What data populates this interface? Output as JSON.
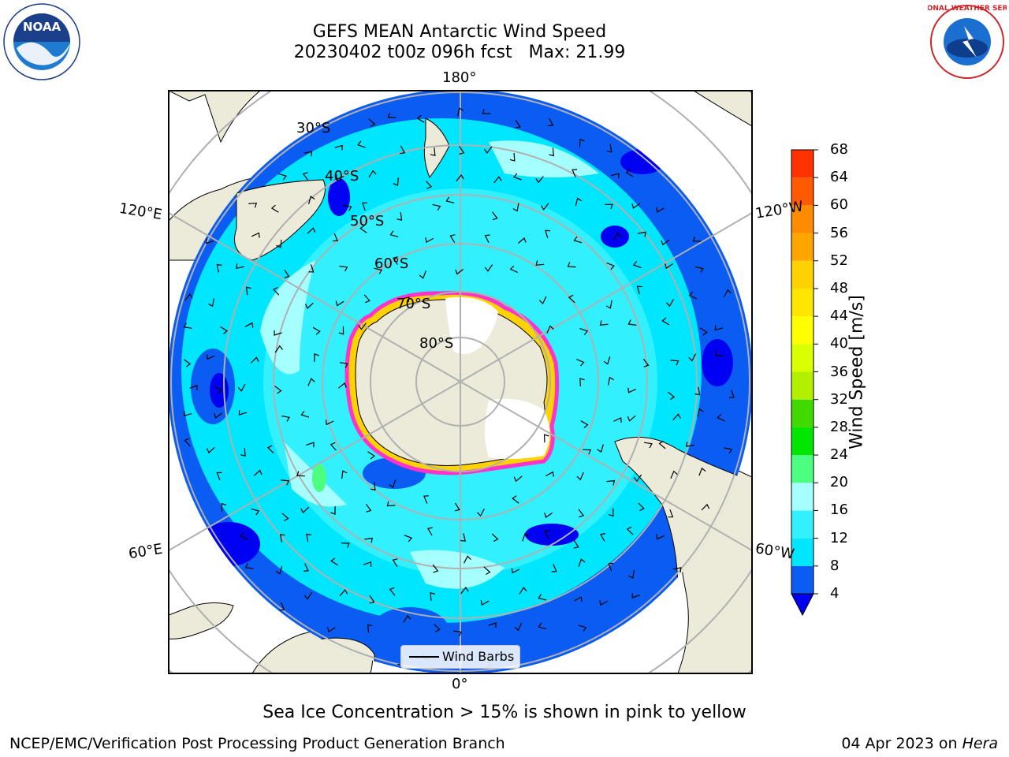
{
  "title_line1": "GEFS MEAN Antarctic Wind Speed",
  "title_line2": "20230402 t00z 096h fcst   Max: 21.99",
  "map": {
    "projection": "south-polar-stereographic",
    "longitude_labels": [
      "180°",
      "120°E",
      "120°W",
      "60°E",
      "60°W",
      "0°"
    ],
    "latitude_labels": [
      "30°S",
      "40°S",
      "50°S",
      "60°S",
      "70°S",
      "80°S"
    ]
  },
  "colorbar": {
    "label": "Wind Speed [m/s]",
    "ticks": [
      "4",
      "8",
      "12",
      "16",
      "20",
      "24",
      "28",
      "32",
      "36",
      "40",
      "44",
      "48",
      "52",
      "56",
      "60",
      "64",
      "68"
    ],
    "colors": [
      "#0a5cf2",
      "#00e6ff",
      "#33f0ff",
      "#a6ffff",
      "#4dff80",
      "#00e600",
      "#40d900",
      "#b3f000",
      "#d9ff00",
      "#ffff00",
      "#ffe600",
      "#ffd200",
      "#ffa500",
      "#ff8c00",
      "#ff5a00",
      "#ff3200"
    ],
    "underflow_color": "#0000f2"
  },
  "legend": {
    "label": "Wind Barbs"
  },
  "footnote": "Sea Ice Concentration > 15% is shown in pink to yellow",
  "credit": "NCEP/EMC/Verification Post Processing Product Generation Branch",
  "date_text": "04 Apr 2023 on ",
  "date_host": "Hera",
  "logos": {
    "noaa": "NOAA",
    "nws": "NATIONAL WEATHER SERVICE"
  }
}
